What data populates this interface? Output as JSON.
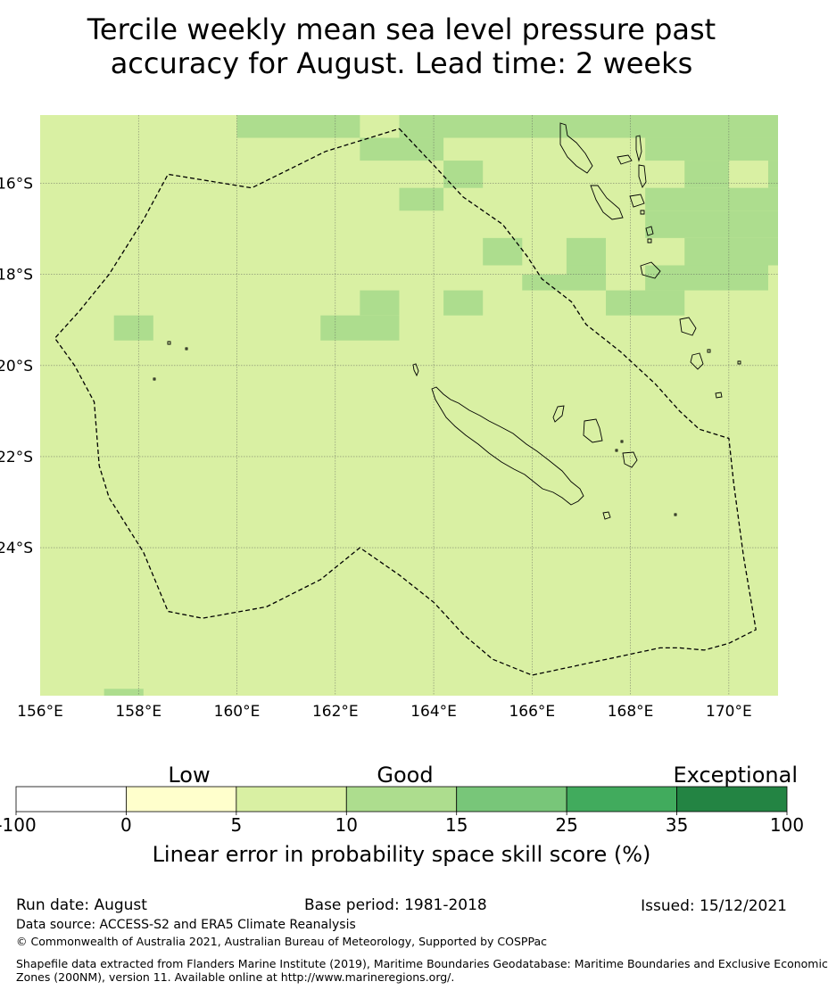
{
  "title": {
    "line1": "Tercile weekly mean sea level pressure past",
    "line2": "accuracy for August. Lead time: 2 weeks"
  },
  "map": {
    "lon_range": [
      156,
      171
    ],
    "lat_range": [
      -27.25,
      -14.5
    ],
    "lon_ticks": [
      {
        "value": 156,
        "label": "156°E"
      },
      {
        "value": 158,
        "label": "158°E"
      },
      {
        "value": 160,
        "label": "160°E"
      },
      {
        "value": 162,
        "label": "162°E"
      },
      {
        "value": 164,
        "label": "164°E"
      },
      {
        "value": 166,
        "label": "166°E"
      },
      {
        "value": 168,
        "label": "168°E"
      },
      {
        "value": 170,
        "label": "170°E"
      }
    ],
    "lat_ticks": [
      {
        "value": -16,
        "label": "16°S"
      },
      {
        "value": -18,
        "label": "18°S"
      },
      {
        "value": -20,
        "label": "20°S"
      },
      {
        "value": -22,
        "label": "22°S"
      },
      {
        "value": -24,
        "label": "24°S"
      }
    ],
    "background_category": "5-10",
    "category_colors": {
      "-100-0": "#ffffff",
      "0-5": "#ffffcc",
      "5-10": "#d9f0a3",
      "10-15": "#addd8e",
      "15-25": "#78c679",
      "25-35": "#41ab5d",
      "35-100": "#238443"
    },
    "good_cells_10_15": [
      [
        160.0,
        162.5,
        -14.5,
        -15.0
      ],
      [
        163.3,
        171.0,
        -14.5,
        -15.0
      ],
      [
        162.5,
        164.2,
        -15.0,
        -15.5
      ],
      [
        168.3,
        171.0,
        -15.0,
        -15.5
      ],
      [
        164.2,
        165.0,
        -15.5,
        -16.1
      ],
      [
        169.1,
        170.0,
        -15.5,
        -16.1
      ],
      [
        170.8,
        171.0,
        -15.5,
        -16.1
      ],
      [
        163.3,
        164.2,
        -16.1,
        -16.6
      ],
      [
        168.3,
        171.0,
        -16.1,
        -16.6
      ],
      [
        168.3,
        171.0,
        -16.6,
        -17.2
      ],
      [
        165.0,
        165.8,
        -17.2,
        -17.8
      ],
      [
        166.7,
        167.5,
        -17.2,
        -17.8
      ],
      [
        169.1,
        171.0,
        -17.2,
        -17.8
      ],
      [
        166.7,
        167.5,
        -17.8,
        -18.35
      ],
      [
        168.3,
        170.8,
        -17.8,
        -18.35
      ],
      [
        165.8,
        167.5,
        -18.0,
        -18.35
      ],
      [
        162.5,
        163.3,
        -18.35,
        -18.9
      ],
      [
        164.2,
        165.0,
        -18.35,
        -18.9
      ],
      [
        167.5,
        169.1,
        -18.35,
        -18.9
      ],
      [
        157.5,
        158.3,
        -18.9,
        -19.45
      ],
      [
        161.7,
        163.3,
        -18.9,
        -19.45
      ],
      [
        157.3,
        158.1,
        -27.1,
        -27.25
      ]
    ],
    "eez_boundary": [
      [
        163.3,
        -14.8
      ],
      [
        164.0,
        -15.6
      ],
      [
        164.6,
        -16.3
      ],
      [
        165.4,
        -16.9
      ],
      [
        165.9,
        -17.6
      ],
      [
        166.2,
        -18.1
      ],
      [
        166.8,
        -18.6
      ],
      [
        167.1,
        -19.1
      ],
      [
        167.8,
        -19.7
      ],
      [
        168.5,
        -20.4
      ],
      [
        169.0,
        -21.0
      ],
      [
        169.4,
        -21.4
      ],
      [
        170.0,
        -21.6
      ],
      [
        170.1,
        -22.6
      ],
      [
        170.3,
        -24.2
      ],
      [
        170.55,
        -25.8
      ],
      [
        170.0,
        -26.1
      ],
      [
        169.5,
        -26.25
      ],
      [
        169.0,
        -26.2
      ],
      [
        168.6,
        -26.2
      ],
      [
        166.0,
        -26.8
      ],
      [
        165.2,
        -26.45
      ],
      [
        164.6,
        -25.9
      ],
      [
        164.0,
        -25.2
      ],
      [
        163.3,
        -24.6
      ],
      [
        162.5,
        -24.0
      ],
      [
        161.7,
        -24.7
      ],
      [
        160.6,
        -25.3
      ],
      [
        159.3,
        -25.55
      ],
      [
        158.6,
        -25.4
      ],
      [
        158.1,
        -24.1
      ],
      [
        157.4,
        -22.9
      ],
      [
        157.2,
        -22.2
      ],
      [
        157.1,
        -20.8
      ],
      [
        156.7,
        -20.0
      ],
      [
        156.3,
        -19.4
      ],
      [
        156.8,
        -18.8
      ],
      [
        157.4,
        -18.0
      ],
      [
        158.1,
        -16.8
      ],
      [
        158.6,
        -15.8
      ],
      [
        160.3,
        -16.1
      ],
      [
        161.8,
        -15.3
      ],
      [
        163.3,
        -14.8
      ]
    ]
  },
  "legend": {
    "low_label": "Low",
    "good_label": "Good",
    "exceptional_label": "Exceptional",
    "colors": [
      "#ffffff",
      "#ffffcc",
      "#d9f0a3",
      "#addd8e",
      "#78c679",
      "#41ab5d",
      "#238443"
    ],
    "tick_labels": [
      "-100",
      "0",
      "5",
      "10",
      "15",
      "25",
      "35",
      "100"
    ],
    "axis_label": "Linear error in probability space skill score (%)"
  },
  "footer": {
    "run_date": "Run date: August",
    "base_period": "Base period: 1981-2018",
    "issued": "Issued: 15/12/2021",
    "data_source": "Data source: ACCESS-S2 and ERA5 Climate Reanalysis",
    "copyright": "© Commonwealth of Australia 2021, Australian Bureau of Meteorology, Supported by COSPPac",
    "shapefile_line1": "Shapefile data extracted from Flanders Marine Institute (2019), Maritime Boundaries Geodatabase: Maritime Boundaries and Exclusive Economic",
    "shapefile_line2": "Zones (200NM), version 11. Available online at http://www.marineregions.org/."
  }
}
